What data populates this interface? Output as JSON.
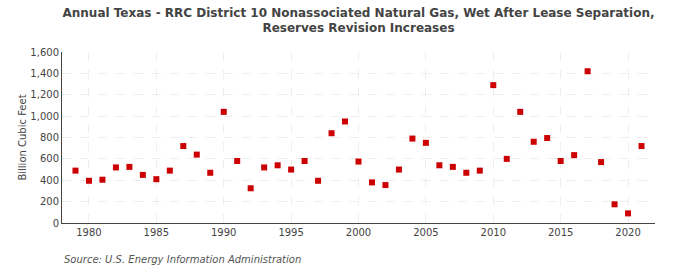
{
  "chart_data": {
    "type": "scatter",
    "title": "Annual Texas - RRC District 10 Nonassociated Natural Gas, Wet After Lease Separation,\nReserves Revision Increases",
    "ylabel": "Billion Cubic Feet",
    "annotations": [
      "Source: U.S. Energy Information Administration"
    ],
    "color": "#cc0000",
    "marker": "square",
    "x": [
      1979,
      1980,
      1981,
      1982,
      1983,
      1984,
      1985,
      1986,
      1987,
      1988,
      1989,
      1990,
      1991,
      1992,
      1993,
      1994,
      1995,
      1996,
      1997,
      1998,
      1999,
      2000,
      2001,
      2002,
      2003,
      2004,
      2005,
      2006,
      2007,
      2008,
      2009,
      2010,
      2011,
      2012,
      2013,
      2014,
      2015,
      2016,
      2017,
      2018,
      2019,
      2020,
      2021
    ],
    "values": [
      490,
      395,
      405,
      520,
      525,
      450,
      410,
      490,
      720,
      640,
      470,
      1040,
      580,
      325,
      520,
      540,
      500,
      580,
      395,
      840,
      950,
      575,
      380,
      355,
      500,
      790,
      750,
      540,
      525,
      470,
      490,
      1290,
      600,
      1040,
      760,
      795,
      580,
      635,
      1420,
      570,
      175,
      90,
      720
    ],
    "xlim": [
      1978,
      2022
    ],
    "xticks": [
      1980,
      1985,
      1990,
      1995,
      2000,
      2005,
      2010,
      2015,
      2020
    ],
    "ylim": [
      0,
      1600
    ],
    "yticks": [
      0,
      200,
      400,
      600,
      800,
      {
        "value": 1000,
        "label": "1,000"
      },
      {
        "value": 1200,
        "label": "1,200"
      },
      {
        "value": 1400,
        "label": "1,400"
      },
      {
        "value": 1600,
        "label": "1,600"
      }
    ],
    "grid": true
  }
}
